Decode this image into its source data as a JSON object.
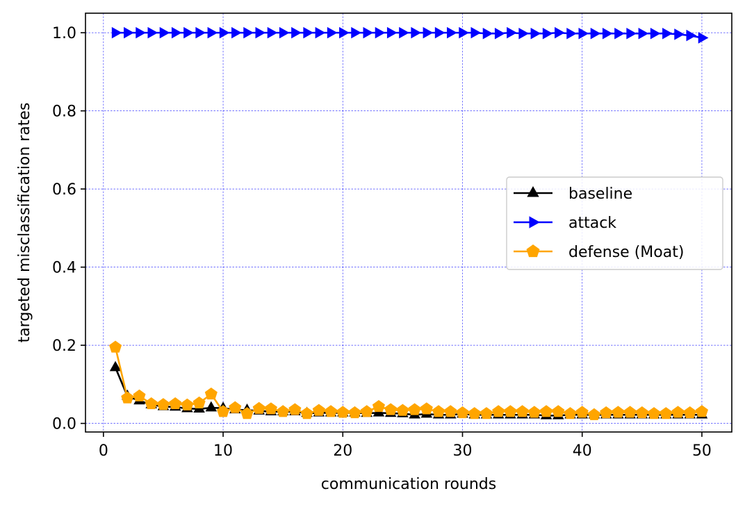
{
  "chart_data": {
    "type": "line",
    "title": "",
    "xlabel": "communication rounds",
    "ylabel": "targeted misclassification rates",
    "xlim": [
      -1.5,
      52.5
    ],
    "ylim": [
      -0.022,
      1.05
    ],
    "xticks": [
      0,
      10,
      20,
      30,
      40,
      50
    ],
    "xtick_labels": [
      "0",
      "10",
      "20",
      "30",
      "40",
      "50"
    ],
    "yticks": [
      0.0,
      0.2,
      0.4,
      0.6,
      0.8,
      1.0
    ],
    "ytick_labels": [
      "0.0",
      "0.2",
      "0.4",
      "0.6",
      "0.8",
      "1.0"
    ],
    "grid": true,
    "grid_color": "#0000ff",
    "legend_position": "center-right",
    "x": [
      1,
      2,
      3,
      4,
      5,
      6,
      7,
      8,
      9,
      10,
      11,
      12,
      13,
      14,
      15,
      16,
      17,
      18,
      19,
      20,
      21,
      22,
      23,
      24,
      25,
      26,
      27,
      28,
      29,
      30,
      31,
      32,
      33,
      34,
      35,
      36,
      37,
      38,
      39,
      40,
      41,
      42,
      43,
      44,
      45,
      46,
      47,
      48,
      49,
      50
    ],
    "series": [
      {
        "name": "baseline",
        "color": "#000000",
        "marker": "triangle-up",
        "values": [
          0.143,
          0.07,
          0.058,
          0.048,
          0.043,
          0.042,
          0.038,
          0.037,
          0.04,
          0.039,
          0.035,
          0.034,
          0.032,
          0.03,
          0.03,
          0.03,
          0.026,
          0.027,
          0.027,
          0.027,
          0.027,
          0.026,
          0.027,
          0.026,
          0.025,
          0.022,
          0.024,
          0.022,
          0.022,
          0.024,
          0.022,
          0.022,
          0.022,
          0.022,
          0.022,
          0.022,
          0.02,
          0.02,
          0.022,
          0.022,
          0.022,
          0.022,
          0.022,
          0.022,
          0.022,
          0.022,
          0.022,
          0.022,
          0.022,
          0.022
        ]
      },
      {
        "name": "attack",
        "color": "#0000ff",
        "marker": "triangle-right",
        "values": [
          1.0,
          1.0,
          1.0,
          1.0,
          1.0,
          1.0,
          1.0,
          1.0,
          1.0,
          1.0,
          1.0,
          1.0,
          1.0,
          1.0,
          1.0,
          1.0,
          1.0,
          1.0,
          1.0,
          1.0,
          1.0,
          1.0,
          1.0,
          1.0,
          1.0,
          1.0,
          1.0,
          1.0,
          1.0,
          1.0,
          1.0,
          0.998,
          0.998,
          1.0,
          0.998,
          0.998,
          0.998,
          1.0,
          0.998,
          0.998,
          0.998,
          0.998,
          0.998,
          0.998,
          0.998,
          0.998,
          0.998,
          0.996,
          0.993,
          0.987
        ]
      },
      {
        "name": "defense (Moat)",
        "color": "#ffa500",
        "marker": "pentagon",
        "values": [
          0.195,
          0.065,
          0.07,
          0.05,
          0.048,
          0.05,
          0.047,
          0.052,
          0.075,
          0.03,
          0.04,
          0.025,
          0.038,
          0.037,
          0.03,
          0.035,
          0.025,
          0.033,
          0.03,
          0.028,
          0.027,
          0.03,
          0.043,
          0.035,
          0.033,
          0.035,
          0.037,
          0.03,
          0.03,
          0.027,
          0.025,
          0.025,
          0.03,
          0.03,
          0.03,
          0.028,
          0.03,
          0.03,
          0.025,
          0.028,
          0.022,
          0.027,
          0.028,
          0.028,
          0.027,
          0.025,
          0.025,
          0.028,
          0.027,
          0.03
        ]
      }
    ]
  }
}
